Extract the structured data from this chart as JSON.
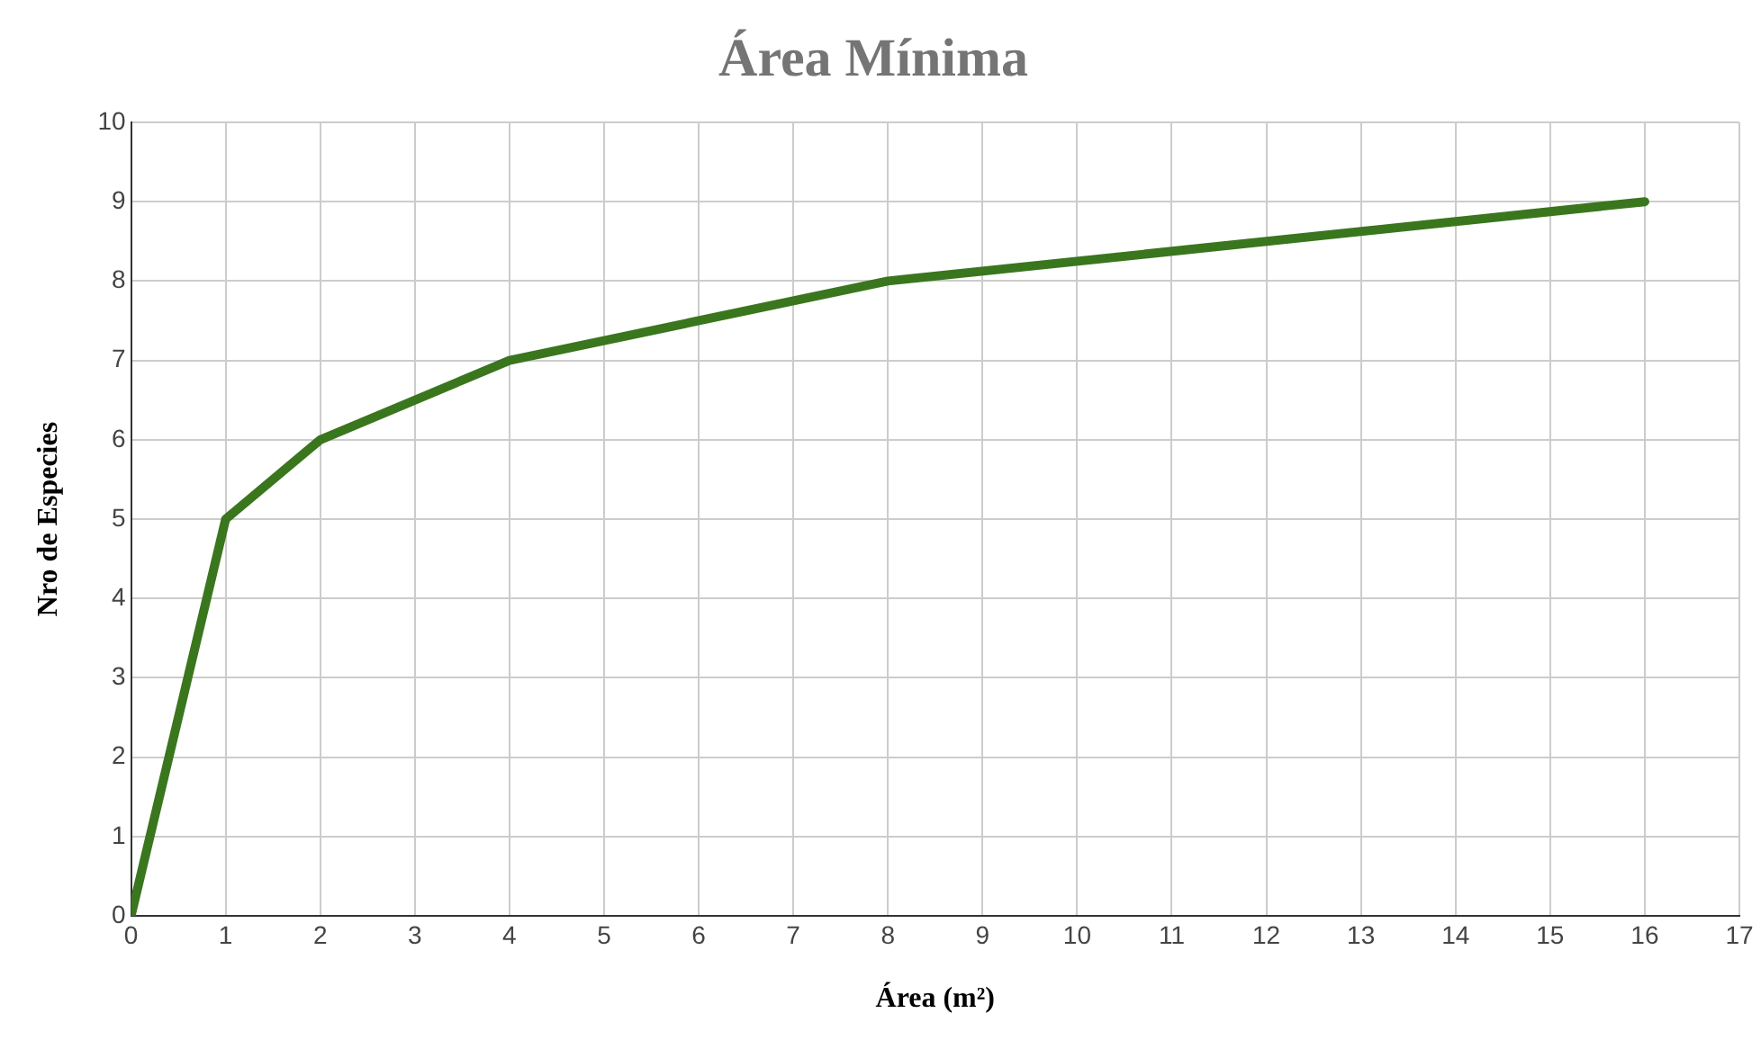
{
  "chart_data": {
    "type": "line",
    "title": "Área Mínima",
    "xlabel": "Área (m²)",
    "ylabel": "Nro de Especies",
    "x": [
      0,
      1,
      2,
      4,
      8,
      16
    ],
    "series": [
      {
        "color": "#3a761d",
        "values": [
          0,
          5,
          6,
          7,
          8,
          9
        ]
      }
    ],
    "xlim": [
      0,
      17
    ],
    "xticks": [
      0,
      1,
      2,
      3,
      4,
      5,
      6,
      7,
      8,
      9,
      10,
      11,
      12,
      13,
      14,
      15,
      16,
      17
    ],
    "ylim": [
      0,
      10
    ],
    "yticks": [
      0,
      1,
      2,
      3,
      4,
      5,
      6,
      7,
      8,
      9,
      10
    ],
    "grid": true,
    "marker": "none",
    "line_style": "solid"
  }
}
